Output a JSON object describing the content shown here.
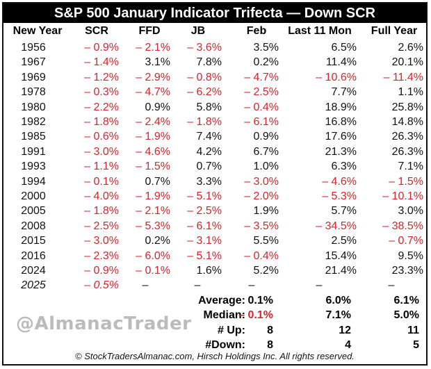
{
  "chart_data": {
    "type": "table",
    "title": "S&P 500 January Indicator Trifecta — Down SCR",
    "columns": [
      "New Year",
      "SCR",
      "FFD",
      "JB",
      "Feb",
      "Last 11 Mon",
      "Full Year"
    ],
    "rows": [
      [
        "1956",
        "– 0.9%",
        "– 2.1%",
        "– 3.6%",
        "3.5%",
        "6.5%",
        "2.6%"
      ],
      [
        "1967",
        "– 1.4%",
        "3.1%",
        "7.8%",
        "0.2%",
        "11.4%",
        "20.1%"
      ],
      [
        "1969",
        "– 1.2%",
        "– 2.9%",
        "– 0.8%",
        "– 4.7%",
        "– 10.6%",
        "– 11.4%"
      ],
      [
        "1978",
        "– 0.3%",
        "– 4.7%",
        "– 6.2%",
        "– 2.5%",
        "7.7%",
        "1.1%"
      ],
      [
        "1980",
        "– 2.2%",
        "0.9%",
        "5.8%",
        "– 0.4%",
        "18.9%",
        "25.8%"
      ],
      [
        "1982",
        "– 1.8%",
        "– 2.4%",
        "– 1.8%",
        "– 6.1%",
        "16.8%",
        "14.8%"
      ],
      [
        "1985",
        "– 0.6%",
        "– 1.9%",
        "7.4%",
        "0.9%",
        "17.6%",
        "26.3%"
      ],
      [
        "1991",
        "– 3.0%",
        "– 4.6%",
        "4.2%",
        "6.7%",
        "21.3%",
        "26.3%"
      ],
      [
        "1993",
        "– 1.1%",
        "– 1.5%",
        "0.7%",
        "1.0%",
        "6.3%",
        "7.1%"
      ],
      [
        "1994",
        "– 0.1%",
        "0.7%",
        "3.3%",
        "– 3.0%",
        "– 4.6%",
        "– 1.5%"
      ],
      [
        "2000",
        "– 4.0%",
        "– 1.9%",
        "– 5.1%",
        "– 2.0%",
        "– 5.3%",
        "– 10.1%"
      ],
      [
        "2005",
        "– 1.8%",
        "– 2.1%",
        "– 2.5%",
        "1.9%",
        "5.7%",
        "3.0%"
      ],
      [
        "2008",
        "– 2.5%",
        "– 5.3%",
        "– 6.1%",
        "– 3.5%",
        "– 34.5%",
        "– 38.5%"
      ],
      [
        "2015",
        "– 3.0%",
        "0.2%",
        "– 3.1%",
        "5.5%",
        "2.5%",
        "– 0.7%"
      ],
      [
        "2016",
        "– 2.3%",
        "– 6.0%",
        "– 5.1%",
        "– 0.4%",
        "15.4%",
        "9.5%"
      ],
      [
        "2024",
        "– 0.9%",
        "– 0.1%",
        "1.6%",
        "5.2%",
        "21.4%",
        "23.3%"
      ],
      [
        "2025",
        "– 0.5%",
        "–",
        "–",
        "–",
        "–",
        "–"
      ]
    ],
    "summary": [
      {
        "label": "Average:",
        "feb": "0.1%",
        "last11": "6.0%",
        "full": "6.1%"
      },
      {
        "label": "Median:",
        "feb": "– 0.1%",
        "last11": "7.1%",
        "full": "5.0%"
      },
      {
        "label": "# Up:",
        "feb": "8",
        "last11": "12",
        "full": "11"
      },
      {
        "label": "#Down:",
        "feb": "8",
        "last11": "4",
        "full": "5"
      }
    ]
  },
  "watermark": "@AlmanacTrader",
  "footer": "© StockTradersAlmanac.com, Hirsch Holdings Inc. All rights reserved.",
  "colors": {
    "negative": "#d8232a",
    "positive": "#111111",
    "title_bg": "#000000"
  }
}
